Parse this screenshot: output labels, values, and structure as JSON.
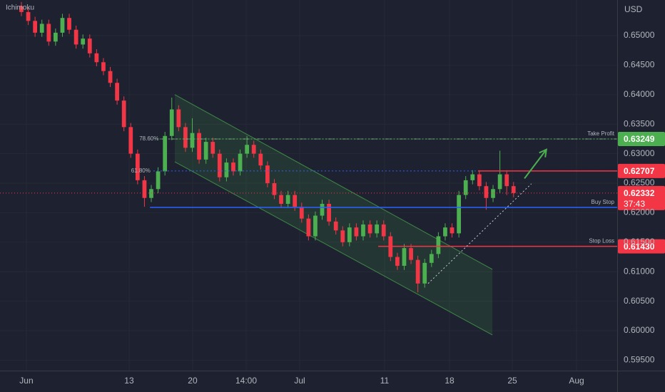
{
  "chart_data": {
    "type": "candlestick",
    "indicator": "Ichimoku",
    "currency": "USD",
    "up_color": "#4caf50",
    "down_color": "#f23645",
    "xlim": [
      -3.13,
      87.16
    ],
    "ylim": [
      0.59324,
      0.65604
    ],
    "xticks": [
      {
        "value": 0.73,
        "label": "Jun"
      },
      {
        "value": 15.76,
        "label": "13"
      },
      {
        "value": 25.05,
        "label": "20"
      },
      {
        "value": 32.88,
        "label": "14:00"
      },
      {
        "value": 40.71,
        "label": "Jul"
      },
      {
        "value": 53.13,
        "label": "11"
      },
      {
        "value": 62.63,
        "label": "18"
      },
      {
        "value": 71.82,
        "label": "25"
      },
      {
        "value": 81.21,
        "label": "Aug"
      }
    ],
    "yticks": [
      {
        "value": 0.65,
        "label": "0.65000"
      },
      {
        "value": 0.645,
        "label": "0.64500"
      },
      {
        "value": 0.64,
        "label": "0.64000"
      },
      {
        "value": 0.635,
        "label": "0.63500"
      },
      {
        "value": 0.63,
        "label": "0.63000"
      },
      {
        "value": 0.625,
        "label": "0.62500"
      },
      {
        "value": 0.62,
        "label": "0.62000"
      },
      {
        "value": 0.615,
        "label": "0.61500"
      },
      {
        "value": 0.61,
        "label": "0.61000"
      },
      {
        "value": 0.605,
        "label": "0.60500"
      },
      {
        "value": 0.6,
        "label": "0.60000"
      },
      {
        "value": 0.595,
        "label": "0.59500"
      }
    ],
    "open": [
      0.655,
      0.654,
      0.6525,
      0.6505,
      0.652,
      0.649,
      0.6505,
      0.653,
      0.651,
      0.6485,
      0.6495,
      0.647,
      0.6455,
      0.644,
      0.642,
      0.639,
      0.6345,
      0.63,
      0.6255,
      0.6225,
      0.624,
      0.627,
      0.633,
      0.6375,
      0.6345,
      0.631,
      0.6335,
      0.629,
      0.632,
      0.63,
      0.626,
      0.6285,
      0.627,
      0.63,
      0.6315,
      0.63,
      0.628,
      0.625,
      0.623,
      0.6215,
      0.623,
      0.621,
      0.619,
      0.616,
      0.6195,
      0.6215,
      0.6185,
      0.617,
      0.615,
      0.6175,
      0.616,
      0.618,
      0.6165,
      0.618,
      0.616,
      0.6125,
      0.611,
      0.614,
      0.612,
      0.608,
      0.6115,
      0.613,
      0.616,
      0.6175,
      0.6165,
      0.623,
      0.6255,
      0.6265,
      0.6245,
      0.6225,
      0.624,
      0.6265,
      0.6245
    ],
    "high": [
      0.6557,
      0.6547,
      0.6532,
      0.6527,
      0.6527,
      0.6512,
      0.6537,
      0.6537,
      0.6517,
      0.6502,
      0.6502,
      0.6477,
      0.6462,
      0.6447,
      0.6427,
      0.6397,
      0.6352,
      0.6307,
      0.6262,
      0.6247,
      0.6277,
      0.6337,
      0.6395,
      0.6382,
      0.6352,
      0.636,
      0.6342,
      0.6327,
      0.6327,
      0.6307,
      0.6292,
      0.6292,
      0.6307,
      0.633,
      0.6322,
      0.6307,
      0.6287,
      0.6257,
      0.6237,
      0.6237,
      0.6237,
      0.6217,
      0.6197,
      0.6202,
      0.6222,
      0.6222,
      0.6192,
      0.6177,
      0.6182,
      0.6182,
      0.6187,
      0.6187,
      0.6187,
      0.6187,
      0.6167,
      0.6132,
      0.6147,
      0.6147,
      0.6127,
      0.6122,
      0.6137,
      0.6167,
      0.6182,
      0.6182,
      0.6237,
      0.6262,
      0.6272,
      0.6272,
      0.6252,
      0.6247,
      0.6305,
      0.6272,
      0.6252
    ],
    "low": [
      0.6533,
      0.6518,
      0.6498,
      0.6498,
      0.6483,
      0.6483,
      0.6498,
      0.6503,
      0.6478,
      0.6478,
      0.6463,
      0.6448,
      0.6433,
      0.6413,
      0.6383,
      0.6338,
      0.6293,
      0.6248,
      0.621,
      0.6218,
      0.6233,
      0.6263,
      0.6323,
      0.6338,
      0.6303,
      0.6303,
      0.6283,
      0.6283,
      0.6293,
      0.6253,
      0.6253,
      0.6263,
      0.6263,
      0.6293,
      0.6293,
      0.6273,
      0.6243,
      0.6223,
      0.6208,
      0.6208,
      0.6203,
      0.6183,
      0.6153,
      0.6153,
      0.6188,
      0.6178,
      0.6163,
      0.6143,
      0.6143,
      0.6153,
      0.6153,
      0.6158,
      0.6158,
      0.6153,
      0.6118,
      0.6103,
      0.6103,
      0.6113,
      0.6065,
      0.6073,
      0.6108,
      0.6123,
      0.6153,
      0.6158,
      0.6158,
      0.6223,
      0.6248,
      0.6238,
      0.6205,
      0.6218,
      0.6233,
      0.623,
      0.6226
    ],
    "close": [
      0.654,
      0.6525,
      0.6505,
      0.652,
      0.649,
      0.6505,
      0.653,
      0.651,
      0.6485,
      0.6495,
      0.647,
      0.6455,
      0.644,
      0.642,
      0.639,
      0.6345,
      0.63,
      0.6255,
      0.6225,
      0.624,
      0.627,
      0.633,
      0.6375,
      0.6345,
      0.631,
      0.6335,
      0.629,
      0.632,
      0.63,
      0.626,
      0.6285,
      0.627,
      0.63,
      0.6315,
      0.63,
      0.628,
      0.625,
      0.623,
      0.6215,
      0.623,
      0.621,
      0.619,
      0.616,
      0.6195,
      0.6215,
      0.6185,
      0.617,
      0.615,
      0.6175,
      0.616,
      0.618,
      0.6165,
      0.618,
      0.616,
      0.6125,
      0.611,
      0.614,
      0.612,
      0.608,
      0.6115,
      0.613,
      0.616,
      0.6175,
      0.6165,
      0.623,
      0.6255,
      0.6265,
      0.6245,
      0.6225,
      0.624,
      0.6265,
      0.6245,
      0.62332
    ],
    "channel": {
      "x": [
        22.44,
        68.9
      ],
      "upper": [
        0.64,
        0.61039
      ],
      "lower": [
        0.62862,
        0.59928
      ],
      "color": "#4caf50"
    },
    "trendline": {
      "x": [
        59.5,
        74.6
      ],
      "y": [
        0.608,
        0.6249
      ],
      "color": "#c8ccd4"
    },
    "arrow": {
      "x": [
        73.6,
        76.8
      ],
      "y": [
        0.6258,
        0.6307
      ],
      "color": "#4caf50"
    },
    "fib": [
      {
        "label": "78.60%",
        "value": 0.63249,
        "start": 20.5,
        "color": "#b2b5be"
      },
      {
        "label": "61.80%",
        "value": 0.62707,
        "start": 19.3,
        "color": "#2962ff"
      }
    ],
    "levels": [
      {
        "name": "Take Profit",
        "value": 0.63249,
        "start": 19.8,
        "color": "#4caf50",
        "style": "dotted",
        "tag": true
      },
      {
        "value": 0.62707,
        "start": 66.8,
        "color": "#f23645",
        "style": "solid",
        "tag": true
      },
      {
        "name": "Buy Stop",
        "value": 0.62089,
        "start": 18.8,
        "color": "#2962ff",
        "style": "solid",
        "tag": false
      },
      {
        "name": "Stop Loss",
        "value": 0.6143,
        "label": "0.61430",
        "start": 52.2,
        "color": "#f23645",
        "style": "solid",
        "tag": true
      }
    ],
    "last": {
      "value": 0.62332,
      "countdown": "37:43",
      "color": "#f23645"
    }
  }
}
